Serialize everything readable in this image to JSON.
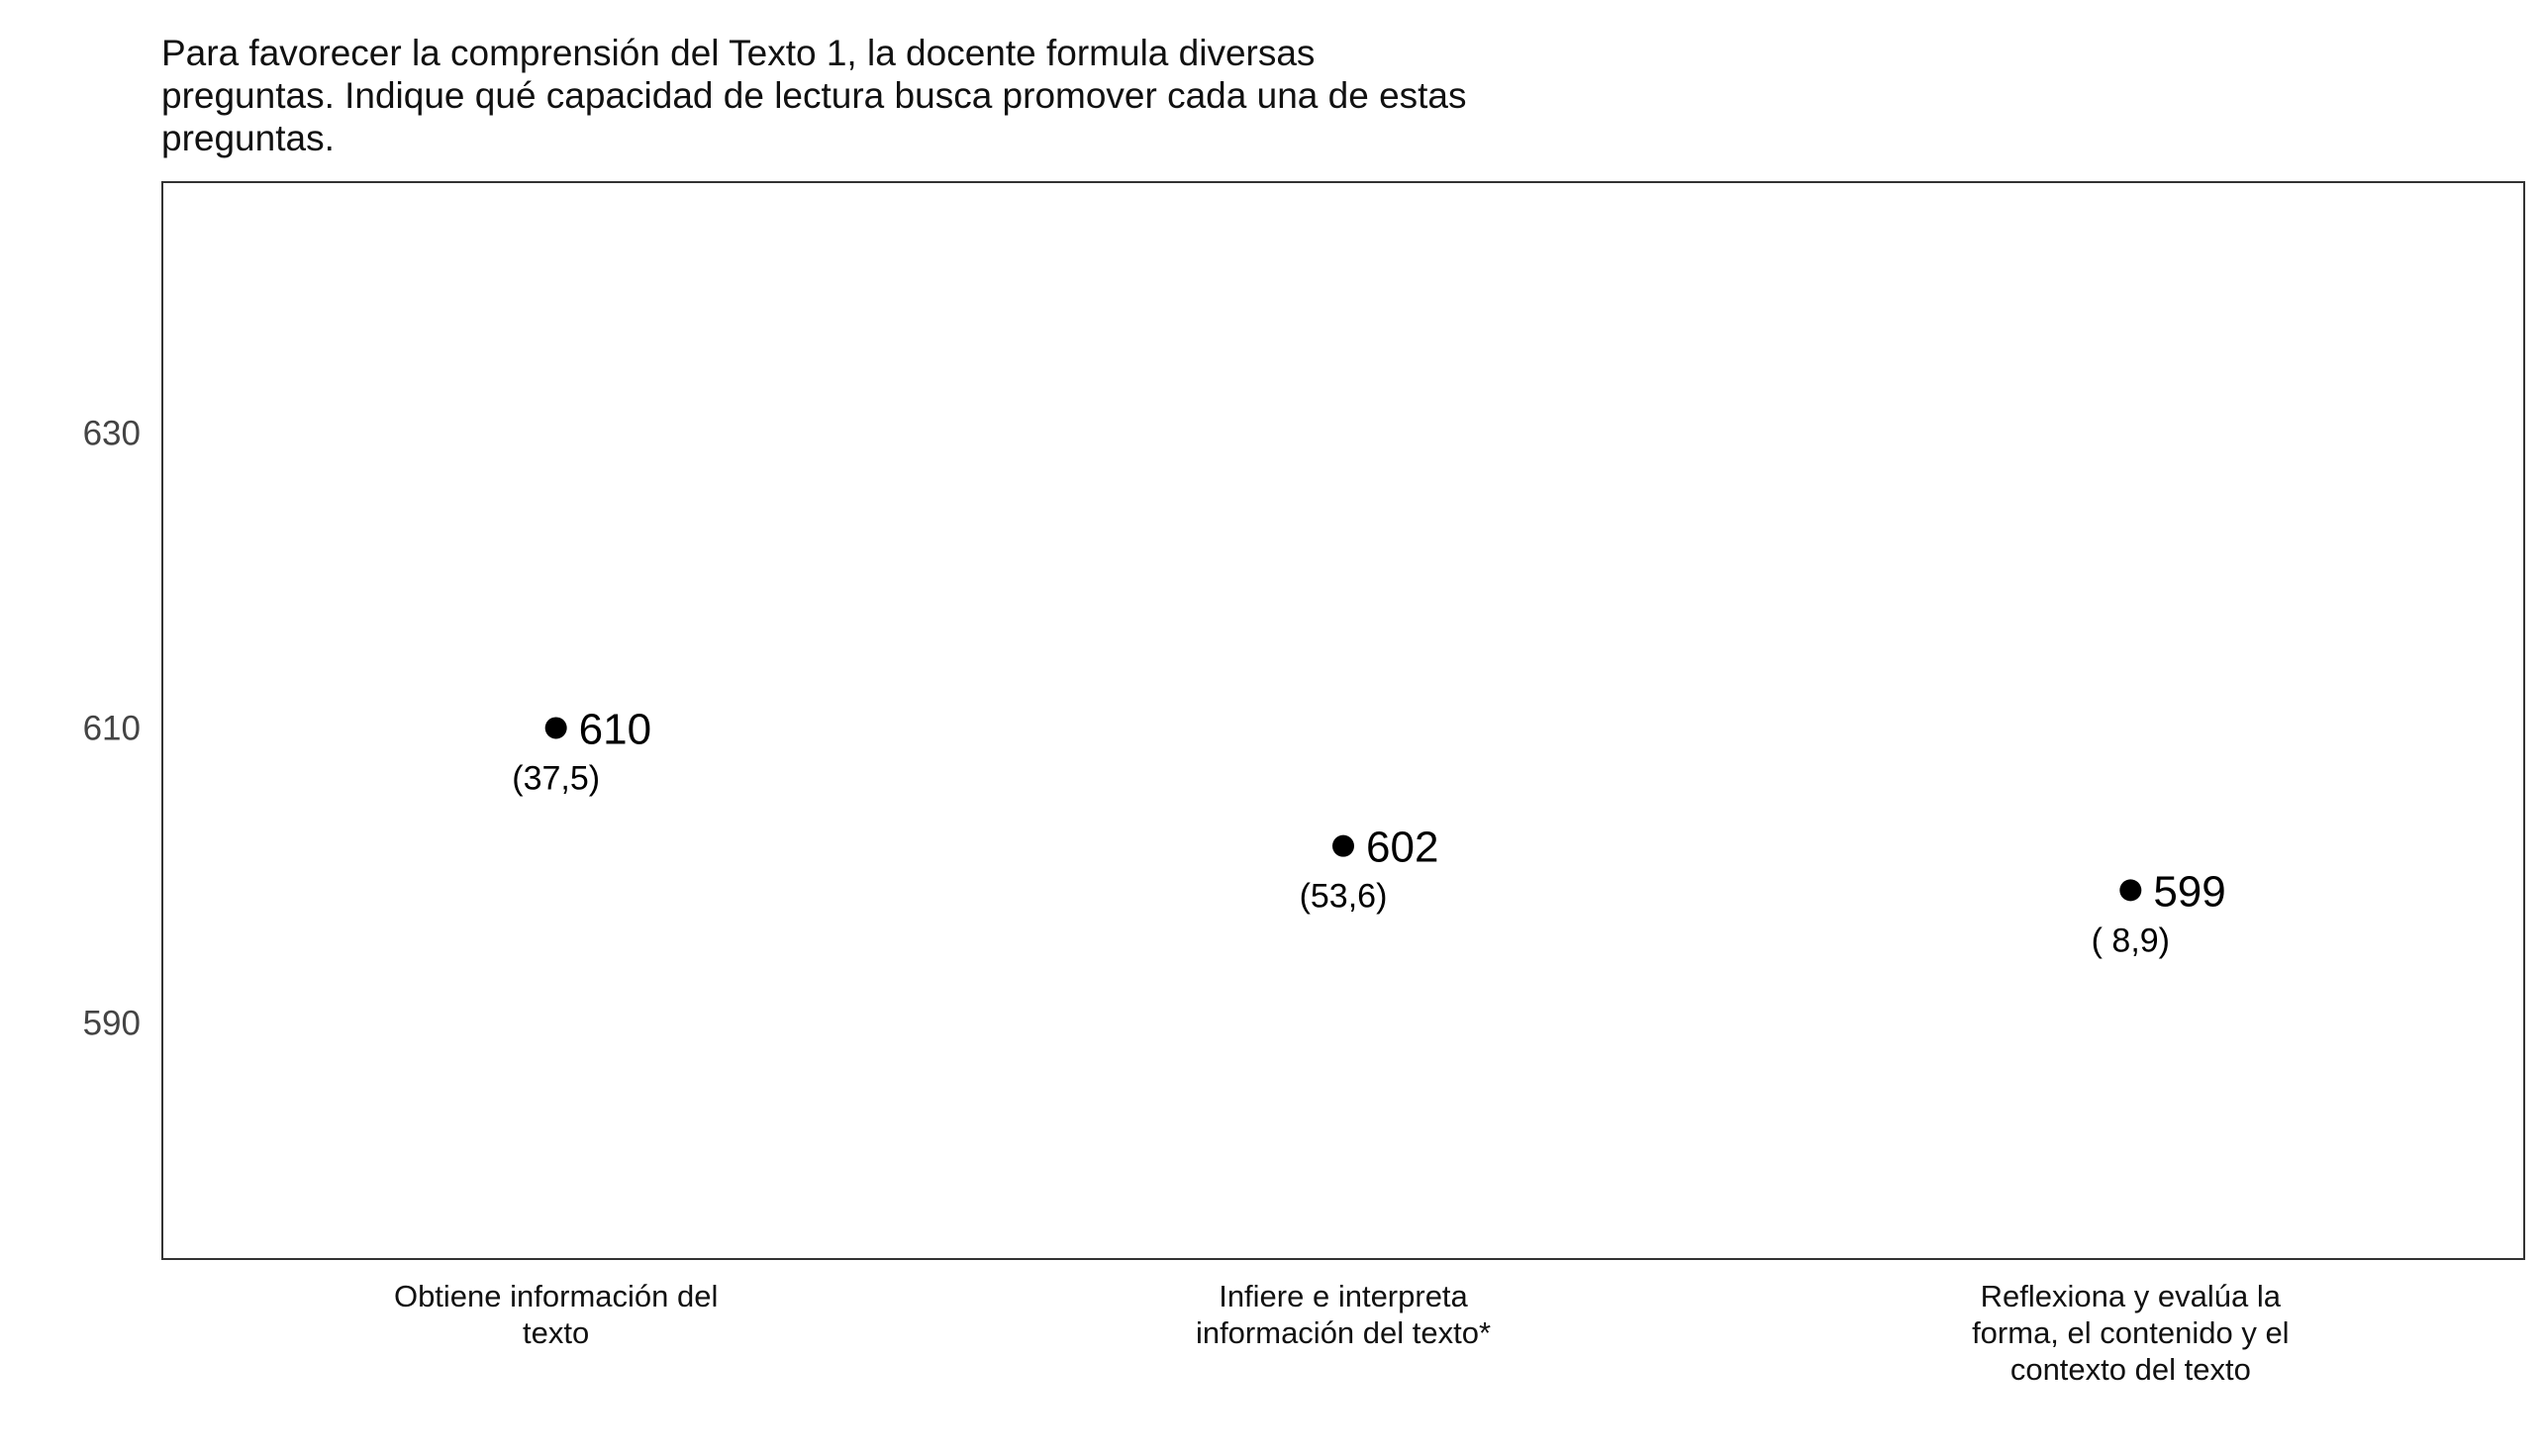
{
  "chart_data": {
    "type": "scatter",
    "title_lines": [
      "Para favorecer la comprensión del Texto 1, la docente formula diversas",
      "preguntas. Indique qué capacidad de lectura busca promover cada una de estas",
      "preguntas."
    ],
    "categories": [
      [
        "Obtiene información del",
        "texto"
      ],
      [
        "Infiere e interpreta",
        "información del texto*"
      ],
      [
        "Reflexiona y evalúa la",
        "forma, el contenido y el",
        "contexto del texto"
      ]
    ],
    "values": [
      610,
      602,
      599
    ],
    "value_labels": [
      "610",
      "602",
      "599"
    ],
    "sub_labels": [
      "(37,5)",
      "(53,6)",
      "( 8,9)"
    ],
    "yticks": [
      630,
      610,
      590
    ],
    "ylim": [
      574,
      647
    ],
    "grid": false,
    "legend": "none",
    "colors": {
      "point": "#000000",
      "frame": "#333333",
      "tick_text": "#444444"
    }
  }
}
